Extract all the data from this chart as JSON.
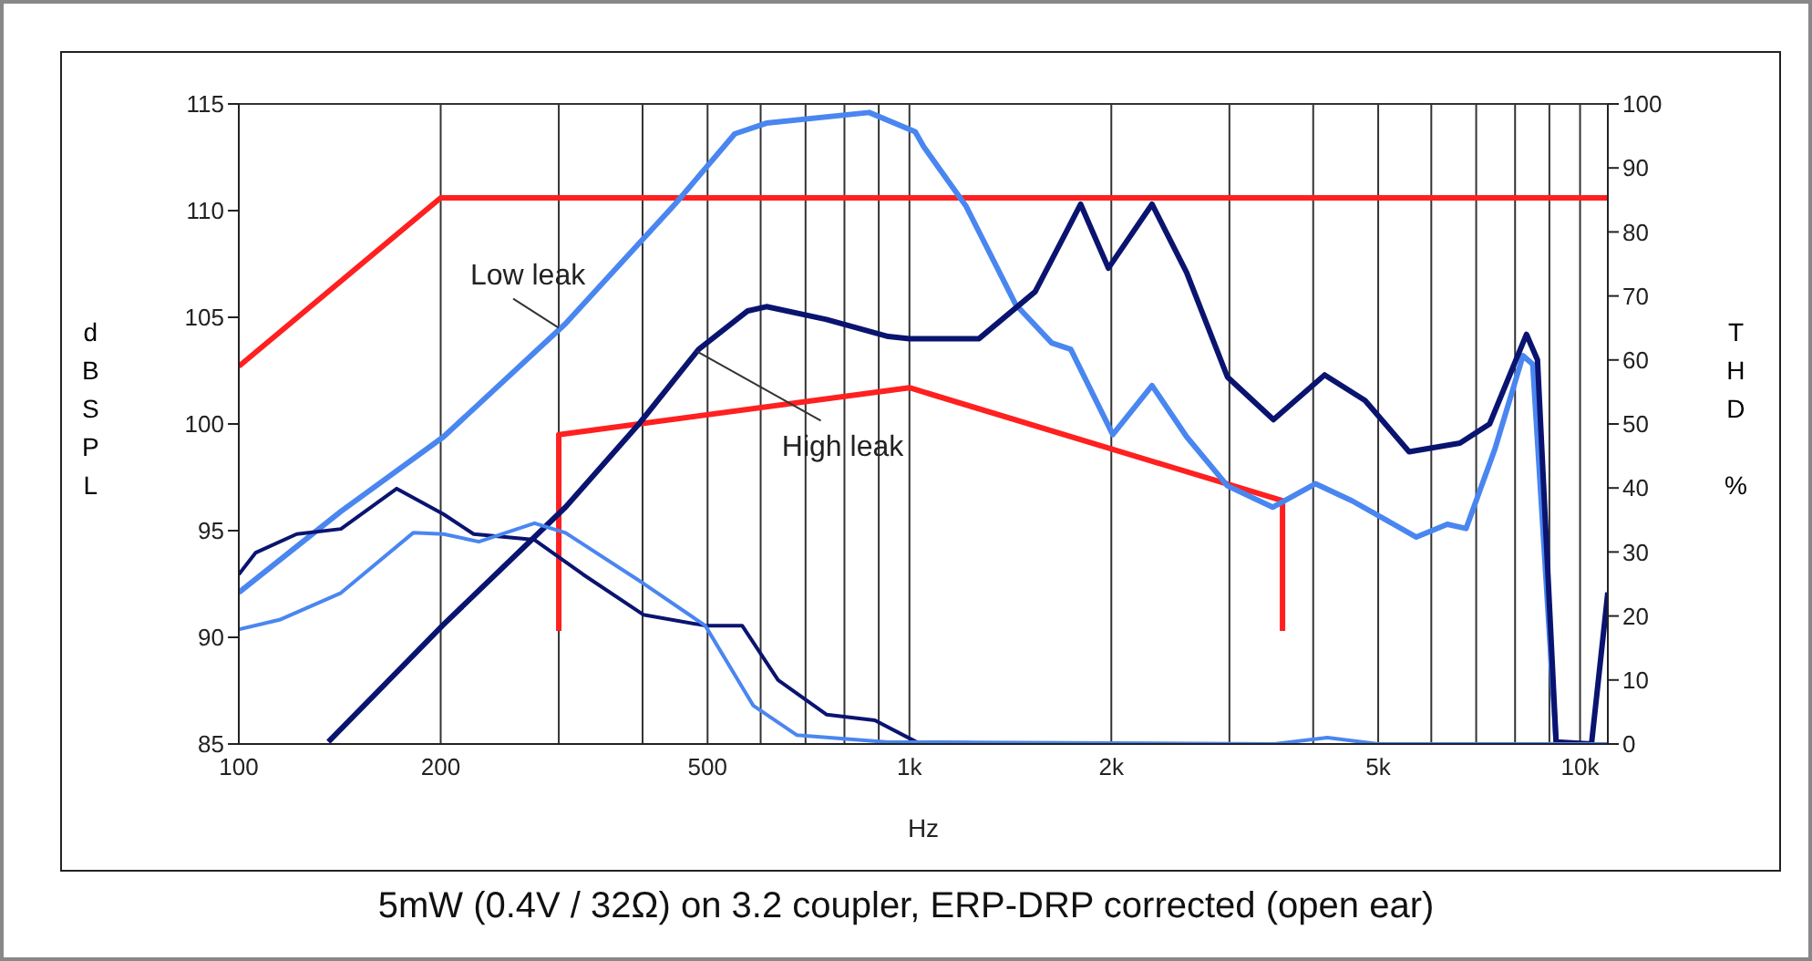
{
  "chart_data": {
    "type": "line",
    "xlabel": "Hz",
    "ylabel": "dBSPL",
    "y2label": "THD %",
    "log": "x",
    "grid": true,
    "legend": false,
    "marker": "none",
    "line_style": "solid",
    "xlim": [
      100,
      11000
    ],
    "xticks": [
      100,
      200,
      {
        "value": 300,
        "label": null
      },
      {
        "value": 400,
        "label": null
      },
      500,
      {
        "value": 600,
        "label": null
      },
      {
        "value": 700,
        "label": null
      },
      {
        "value": 800,
        "label": null
      },
      {
        "value": 900,
        "label": null
      },
      {
        "value": 1000,
        "label": "1k"
      },
      {
        "value": 2000,
        "label": "2k"
      },
      {
        "value": 3000,
        "label": null
      },
      {
        "value": 4000,
        "label": null
      },
      {
        "value": 5000,
        "label": "5k"
      },
      {
        "value": 6000,
        "label": null
      },
      {
        "value": 7000,
        "label": null
      },
      {
        "value": 8000,
        "label": null
      },
      {
        "value": 9000,
        "label": null
      },
      {
        "value": 10000,
        "label": "10k"
      }
    ],
    "ylim": [
      85,
      115
    ],
    "yticks": [
      85,
      90,
      95,
      100,
      105,
      110,
      115
    ],
    "y2lim": [
      0,
      100
    ],
    "y2ticks": [
      0,
      10,
      20,
      30,
      40,
      50,
      60,
      70,
      80,
      90,
      100
    ],
    "series": [
      {
        "color": "#ff2020",
        "x": [
          100,
          200,
          11000
        ],
        "values": [
          102.7,
          110.6,
          110.6
        ]
      },
      {
        "color": "#ff2020",
        "x": [
          300,
          300,
          1000,
          3600,
          3600
        ],
        "values": [
          90.3,
          99.5,
          101.7,
          96.4,
          90.3
        ]
      },
      {
        "color": "#4a86f0",
        "x": [
          100,
          142,
          202,
          307,
          447,
          549,
          612,
          871,
          1020,
          1050,
          1215,
          1440,
          1630,
          1740,
          2010,
          2300,
          2590,
          2980,
          3480,
          4030,
          4570,
          5700,
          6340,
          6760,
          7460,
          8220,
          8500,
          9210
        ],
        "values": [
          92.1,
          95.9,
          99.4,
          104.7,
          110.3,
          113.6,
          114.1,
          114.6,
          113.7,
          113,
          110.2,
          105.6,
          103.8,
          103.5,
          99.5,
          101.8,
          99.4,
          97.1,
          96.1,
          97.2,
          96.4,
          94.7,
          95.3,
          95.1,
          98.8,
          103.2,
          102.8,
          85.1
        ]
      },
      {
        "color": "#0a1470",
        "x": [
          136,
          202,
          307,
          395,
          485,
          574,
          612,
          752,
          930,
          1000,
          1270,
          1540,
          1800,
          1980,
          2300,
          2590,
          2980,
          3490,
          4160,
          4780,
          5560,
          6620,
          7330,
          8320,
          8640,
          9210,
          10400,
          11000
        ],
        "values": [
          85.1,
          90.6,
          96.1,
          100,
          103.5,
          105.3,
          105.5,
          104.9,
          104.1,
          104,
          104,
          106.2,
          110.3,
          107.3,
          110.3,
          107.1,
          102.2,
          100.2,
          102.3,
          101.1,
          98.7,
          99.1,
          100,
          104.2,
          103,
          85.1,
          85,
          92.1
        ]
      },
      {
        "axis": "y2",
        "color": "#0a1470",
        "x": [
          100,
          106,
          122,
          142,
          172,
          202,
          224,
          276,
          326,
          401,
          496,
          563,
          637,
          752,
          888,
          1025,
          1500
        ],
        "values": [
          26.5,
          29.9,
          32.8,
          33.6,
          39.9,
          35.9,
          32.8,
          31.9,
          26.5,
          20.2,
          18.5,
          18.5,
          10,
          4.6,
          3.7,
          0.3,
          0
        ]
      },
      {
        "axis": "y2",
        "color": "#4a86f0",
        "x": [
          100,
          115,
          142,
          182,
          202,
          228,
          276,
          307,
          401,
          496,
          585,
          679,
          930,
          3500,
          4200,
          5000,
          11000
        ],
        "values": [
          17.9,
          19.4,
          23.6,
          33,
          32.8,
          31.6,
          34.5,
          33,
          25.1,
          18.5,
          6,
          1.4,
          0.3,
          0,
          1,
          0,
          0
        ]
      }
    ],
    "annotations": [
      {
        "text": "Low leak",
        "x": 300,
        "y": 104.5
      },
      {
        "text": "High leak",
        "x": 482,
        "y": 103.4
      },
      "5mW (0.4V / 32Ω) on 3.2 coupler, ERP-DRP corrected (open ear)"
    ]
  }
}
